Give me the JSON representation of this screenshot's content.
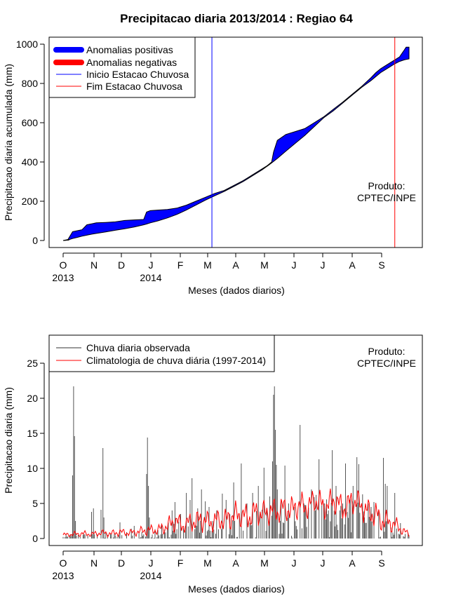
{
  "chart_data": [
    {
      "type": "area",
      "title": "Precipitacao diaria 2013/2014 : Regiao 64",
      "xlabel": "Meses (dados diarios)",
      "ylabel": "Precipitacao diaria acumulada (mm)",
      "ylim": [
        0,
        1000
      ],
      "xlim_days": [
        0,
        365
      ],
      "yticks": [
        0,
        200,
        400,
        600,
        800,
        1000
      ],
      "month_ticks": [
        "O",
        "N",
        "D",
        "J",
        "F",
        "M",
        "A",
        "M",
        "J",
        "J",
        "A",
        "S"
      ],
      "year_labels": [
        {
          "month_index": 0,
          "text": "2013"
        },
        {
          "month_index": 3,
          "text": "2014"
        }
      ],
      "legend": [
        "Anomalias positivas",
        "Anomalias negativas",
        "Inicio Estacao Chuvosa",
        "Fim Estacao Chuvosa"
      ],
      "rainy_season_start_day": 157,
      "rainy_season_end_day": 350,
      "annotation": [
        "Produto:",
        "CPTEC/INPE"
      ],
      "observed_cumulative": [
        [
          0,
          0
        ],
        [
          5,
          5
        ],
        [
          10,
          45
        ],
        [
          15,
          50
        ],
        [
          20,
          55
        ],
        [
          25,
          80
        ],
        [
          30,
          85
        ],
        [
          35,
          90
        ],
        [
          45,
          92
        ],
        [
          55,
          95
        ],
        [
          65,
          102
        ],
        [
          75,
          105
        ],
        [
          85,
          107
        ],
        [
          88,
          145
        ],
        [
          92,
          152
        ],
        [
          100,
          155
        ],
        [
          110,
          158
        ],
        [
          120,
          165
        ],
        [
          130,
          180
        ],
        [
          140,
          200
        ],
        [
          150,
          220
        ],
        [
          160,
          240
        ],
        [
          170,
          255
        ],
        [
          180,
          280
        ],
        [
          190,
          305
        ],
        [
          200,
          335
        ],
        [
          210,
          365
        ],
        [
          215,
          380
        ],
        [
          220,
          400
        ],
        [
          222,
          450
        ],
        [
          226,
          510
        ],
        [
          235,
          540
        ],
        [
          245,
          555
        ],
        [
          255,
          570
        ],
        [
          265,
          600
        ],
        [
          275,
          630
        ],
        [
          285,
          660
        ],
        [
          295,
          700
        ],
        [
          305,
          740
        ],
        [
          315,
          785
        ],
        [
          325,
          830
        ],
        [
          330,
          855
        ],
        [
          335,
          875
        ],
        [
          340,
          890
        ],
        [
          345,
          905
        ],
        [
          350,
          920
        ],
        [
          355,
          935
        ],
        [
          360,
          970
        ],
        [
          362,
          985
        ],
        [
          365,
          985
        ]
      ],
      "climatology_cumulative": [
        [
          0,
          0
        ],
        [
          5,
          3
        ],
        [
          10,
          10
        ],
        [
          15,
          16
        ],
        [
          20,
          22
        ],
        [
          25,
          27
        ],
        [
          30,
          32
        ],
        [
          35,
          36
        ],
        [
          45,
          44
        ],
        [
          55,
          52
        ],
        [
          65,
          60
        ],
        [
          75,
          69
        ],
        [
          85,
          80
        ],
        [
          88,
          84
        ],
        [
          92,
          90
        ],
        [
          100,
          100
        ],
        [
          110,
          115
        ],
        [
          120,
          133
        ],
        [
          130,
          155
        ],
        [
          140,
          180
        ],
        [
          150,
          205
        ],
        [
          160,
          228
        ],
        [
          170,
          250
        ],
        [
          180,
          275
        ],
        [
          190,
          300
        ],
        [
          200,
          330
        ],
        [
          210,
          360
        ],
        [
          215,
          377
        ],
        [
          220,
          395
        ],
        [
          222,
          403
        ],
        [
          226,
          418
        ],
        [
          235,
          455
        ],
        [
          245,
          495
        ],
        [
          255,
          535
        ],
        [
          265,
          580
        ],
        [
          275,
          625
        ],
        [
          285,
          668
        ],
        [
          295,
          705
        ],
        [
          305,
          745
        ],
        [
          315,
          780
        ],
        [
          325,
          815
        ],
        [
          330,
          835
        ],
        [
          335,
          855
        ],
        [
          340,
          870
        ],
        [
          345,
          885
        ],
        [
          350,
          900
        ],
        [
          355,
          912
        ],
        [
          360,
          920
        ],
        [
          362,
          922
        ],
        [
          365,
          925
        ]
      ]
    },
    {
      "type": "bar",
      "xlabel": "Meses (dados diarios)",
      "ylabel": "Precipitacao diaria (mm)",
      "ylim": [
        0,
        28
      ],
      "xlim_days": [
        0,
        365
      ],
      "yticks": [
        0,
        5,
        10,
        15,
        20,
        25
      ],
      "month_ticks": [
        "O",
        "N",
        "D",
        "J",
        "F",
        "M",
        "A",
        "M",
        "J",
        "J",
        "A",
        "S"
      ],
      "year_labels": [
        {
          "month_index": 0,
          "text": "2013"
        },
        {
          "month_index": 3,
          "text": "2014"
        }
      ],
      "legend": [
        "Chuva diaria observada",
        "Climatologia de chuva diária (1997-2014)"
      ],
      "annotation": [
        "Produto:",
        "CPTEC/INPE"
      ],
      "observed_peaks": [
        [
          10,
          9
        ],
        [
          11,
          21.7
        ],
        [
          12,
          14.6
        ],
        [
          13,
          2.5
        ],
        [
          30,
          3.8
        ],
        [
          32,
          4.3
        ],
        [
          40,
          4.1
        ],
        [
          42,
          12.9
        ],
        [
          43,
          3
        ],
        [
          60,
          2.3
        ],
        [
          72,
          1.4
        ],
        [
          75,
          1.8
        ],
        [
          88,
          9.2
        ],
        [
          89,
          14.4
        ],
        [
          90,
          7.5
        ],
        [
          91,
          3
        ],
        [
          104,
          2
        ],
        [
          115,
          4
        ],
        [
          118,
          5.2
        ],
        [
          124,
          3.5
        ],
        [
          130,
          6.5
        ],
        [
          134,
          5.5
        ],
        [
          136,
          8.6
        ],
        [
          142,
          4.3
        ],
        [
          146,
          7
        ],
        [
          150,
          5.3
        ],
        [
          154,
          4.5
        ],
        [
          162,
          4
        ],
        [
          168,
          6.4
        ],
        [
          172,
          5.5
        ],
        [
          180,
          8
        ],
        [
          188,
          10.7
        ],
        [
          194,
          5
        ],
        [
          200,
          6.5
        ],
        [
          206,
          7.5
        ],
        [
          212,
          10.1
        ],
        [
          218,
          6
        ],
        [
          221,
          11
        ],
        [
          222,
          20.5
        ],
        [
          223,
          21.7
        ],
        [
          224,
          15.5
        ],
        [
          225,
          10.5
        ],
        [
          226,
          7
        ],
        [
          230,
          5.5
        ],
        [
          234,
          10.4
        ],
        [
          238,
          5
        ],
        [
          244,
          4.5
        ],
        [
          250,
          16.2
        ],
        [
          254,
          5
        ],
        [
          262,
          7
        ],
        [
          266,
          4
        ],
        [
          270,
          11.3
        ],
        [
          276,
          5
        ],
        [
          280,
          4
        ],
        [
          284,
          12.6
        ],
        [
          288,
          7.5
        ],
        [
          292,
          4
        ],
        [
          295,
          5
        ],
        [
          298,
          10.7
        ],
        [
          302,
          5.5
        ],
        [
          306,
          7.5
        ],
        [
          310,
          11.6
        ],
        [
          312,
          10.6
        ],
        [
          316,
          6.3
        ],
        [
          322,
          5
        ],
        [
          325,
          4.5
        ],
        [
          328,
          5.2
        ],
        [
          333,
          4
        ],
        [
          338,
          11.5
        ],
        [
          340,
          7.8
        ],
        [
          342,
          7.5
        ],
        [
          350,
          6.5
        ],
        [
          356,
          2.2
        ]
      ],
      "climatology_series": [
        [
          0,
          0.5
        ],
        [
          10,
          0.6
        ],
        [
          20,
          0.7
        ],
        [
          30,
          0.6
        ],
        [
          40,
          0.8
        ],
        [
          50,
          0.7
        ],
        [
          60,
          0.9
        ],
        [
          70,
          0.8
        ],
        [
          80,
          1.0
        ],
        [
          90,
          1.2
        ],
        [
          100,
          1.2
        ],
        [
          105,
          1.5
        ],
        [
          110,
          1.8
        ],
        [
          115,
          2.2
        ],
        [
          120,
          2.5
        ],
        [
          125,
          1.8
        ],
        [
          130,
          2.0
        ],
        [
          135,
          2.5
        ],
        [
          140,
          2.3
        ],
        [
          145,
          2.8
        ],
        [
          150,
          2.5
        ],
        [
          155,
          2.3
        ],
        [
          160,
          2.5
        ],
        [
          165,
          2.7
        ],
        [
          170,
          2.5
        ],
        [
          175,
          3.0
        ],
        [
          180,
          3.2
        ],
        [
          185,
          3.5
        ],
        [
          190,
          3.2
        ],
        [
          195,
          3.0
        ],
        [
          200,
          3.5
        ],
        [
          205,
          3.8
        ],
        [
          210,
          3.5
        ],
        [
          215,
          3.8
        ],
        [
          220,
          4.0
        ],
        [
          225,
          3.8
        ],
        [
          230,
          4.2
        ],
        [
          235,
          4.3
        ],
        [
          240,
          4.0
        ],
        [
          245,
          4.5
        ],
        [
          250,
          4.8
        ],
        [
          255,
          4.5
        ],
        [
          260,
          4.6
        ],
        [
          265,
          5.5
        ],
        [
          270,
          5.2
        ],
        [
          275,
          4.5
        ],
        [
          280,
          4.8
        ],
        [
          285,
          5.5
        ],
        [
          290,
          5.0
        ],
        [
          295,
          4.3
        ],
        [
          300,
          4.6
        ],
        [
          305,
          5.5
        ],
        [
          310,
          5.2
        ],
        [
          315,
          4.5
        ],
        [
          320,
          4.0
        ],
        [
          325,
          3.5
        ],
        [
          330,
          3.5
        ],
        [
          335,
          2.5
        ],
        [
          340,
          2.5
        ],
        [
          345,
          2.2
        ],
        [
          350,
          2.0
        ],
        [
          355,
          1.5
        ],
        [
          360,
          1.0
        ],
        [
          365,
          0.6
        ]
      ]
    }
  ]
}
